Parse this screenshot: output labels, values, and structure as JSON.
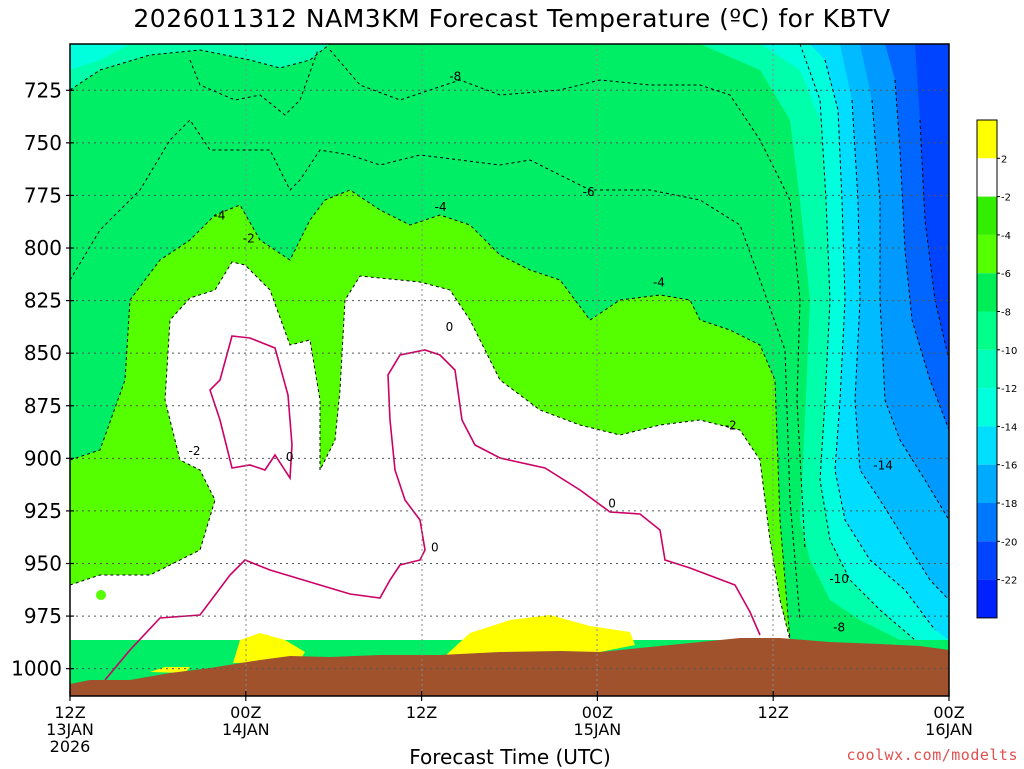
{
  "title": "2026011312 NAM3KM Forecast Temperature (ºC) for KBTV",
  "credit": "coolwx.com/modelts",
  "chart_data": {
    "type": "heatmap",
    "title": "2026011312 NAM3KM Forecast Temperature (ºC) for KBTV",
    "xlabel": "Forecast Time (UTC)",
    "ylabel": "",
    "x_ticks": [
      {
        "hour": 0,
        "lines": [
          "12Z",
          "13JAN",
          "2026"
        ]
      },
      {
        "hour": 12,
        "lines": [
          "00Z",
          "14JAN"
        ]
      },
      {
        "hour": 24,
        "lines": [
          "12Z"
        ]
      },
      {
        "hour": 36,
        "lines": [
          "00Z",
          "15JAN"
        ]
      },
      {
        "hour": 48,
        "lines": [
          "12Z"
        ]
      },
      {
        "hour": 60,
        "lines": [
          "00Z",
          "16JAN"
        ]
      }
    ],
    "xlim_hours": [
      0,
      60
    ],
    "y_ticks": [
      "725",
      "750",
      "775",
      "800",
      "825",
      "850",
      "875",
      "900",
      "925",
      "950",
      "975",
      "1000"
    ],
    "ylim_hpa": [
      703,
      1013
    ],
    "grid": true,
    "colorbar": {
      "labels": [
        "2",
        "-2",
        "-4",
        "-6",
        "-8",
        "-10",
        "-12",
        "-14",
        "-16",
        "-18",
        "-20",
        "-22"
      ],
      "colors": [
        "#ffff00",
        "#ffffff",
        "#33ee00",
        "#55ff00",
        "#00ee55",
        "#00ff88",
        "#00ffbb",
        "#00ffdd",
        "#00ddff",
        "#00aaff",
        "#0077ff",
        "#0044ff",
        "#0022ff"
      ]
    },
    "contour_labels": [
      {
        "text": "-8",
        "hour": 26.3,
        "p": 718
      },
      {
        "text": "-6",
        "hour": 35.4,
        "p": 773
      },
      {
        "text": "-4",
        "hour": 10.2,
        "p": 784
      },
      {
        "text": "-4",
        "hour": 25.3,
        "p": 780
      },
      {
        "text": "-4",
        "hour": 40.2,
        "p": 816
      },
      {
        "text": "-2",
        "hour": 12.2,
        "p": 795
      },
      {
        "text": "-2",
        "hour": 45.1,
        "p": 884
      },
      {
        "text": "-2",
        "hour": 8.5,
        "p": 896
      },
      {
        "text": "0",
        "hour": 25.9,
        "p": 837
      },
      {
        "text": "0",
        "hour": 15.0,
        "p": 899
      },
      {
        "text": "0",
        "hour": 37.0,
        "p": 921
      },
      {
        "text": "0",
        "hour": 24.9,
        "p": 942
      },
      {
        "text": "-14",
        "hour": 55.5,
        "p": 903
      },
      {
        "text": "-10",
        "hour": 52.5,
        "p": 957
      },
      {
        "text": "-8",
        "hour": 52.5,
        "p": 980
      }
    ],
    "colors": {
      "terrain": "#a0522d",
      "above_freezing": "#ffff00",
      "freezing_line": "#cc0066",
      "contour": "#000000"
    }
  }
}
